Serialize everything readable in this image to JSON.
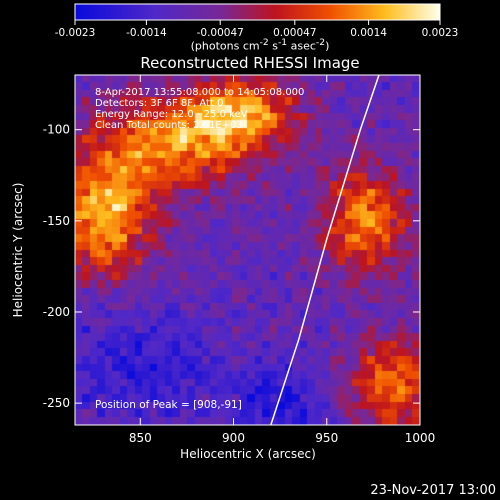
{
  "chart_data": {
    "type": "heatmap",
    "title": "Reconstructed RHESSI Image",
    "xlabel": "Heliocentric X (arcsec)",
    "ylabel": "Heliocentric Y (arcsec)",
    "xlim": [
      815,
      1000
    ],
    "ylim": [
      -262,
      -70
    ],
    "xticks": [
      850,
      900,
      950,
      1000
    ],
    "yticks": [
      -100,
      -150,
      -200,
      -250
    ],
    "colorbar": {
      "ticks": [
        -0.0023,
        -0.0014,
        -0.00047,
        0.00047,
        0.0014,
        0.0023
      ],
      "tick_labels": [
        "-0.0023",
        "-0.0014",
        "-0.00047",
        "0.00047",
        "0.0014",
        "0.0023"
      ],
      "label_html": "(photons cm<sup>-2</sup> s<sup>-1</sup> asec<sup>-2</sup>)",
      "range": [
        -0.0023,
        0.0023
      ]
    },
    "annotations": [
      "8-Apr-2017 13:55:08.000 to 14:05:08.000",
      "Detectors: 3F 6F 8F, Att 0",
      "Energy Range: 12.0 - 25.0 keV",
      "Clean    Total counts: 2.61E+03"
    ],
    "peak_label": "Position of Peak = [908,-91]",
    "limb_curve": [
      [
        920,
        -262
      ],
      [
        935,
        -215
      ],
      [
        950,
        -160
      ],
      [
        968,
        -100
      ],
      [
        978,
        -70
      ]
    ],
    "hotspots": [
      {
        "x": 830,
        "y": -148,
        "amp": 1.0,
        "sx": 18,
        "sy": 22
      },
      {
        "x": 865,
        "y": -108,
        "amp": 0.85,
        "sx": 28,
        "sy": 18
      },
      {
        "x": 905,
        "y": -92,
        "amp": 0.9,
        "sx": 20,
        "sy": 14
      },
      {
        "x": 970,
        "y": -150,
        "amp": 0.85,
        "sx": 16,
        "sy": 20
      },
      {
        "x": 985,
        "y": -240,
        "amp": 0.8,
        "sx": 16,
        "sy": 18
      },
      {
        "x": 850,
        "y": -230,
        "amp": -0.35,
        "sx": 30,
        "sy": 20
      },
      {
        "x": 925,
        "y": -250,
        "amp": -0.4,
        "sx": 18,
        "sy": 16
      }
    ]
  },
  "footer": {
    "timestamp": "23-Nov-2017 13:00"
  },
  "colors": {
    "background": "#000000",
    "text": "#ffffff",
    "limb": "#ffffff"
  }
}
